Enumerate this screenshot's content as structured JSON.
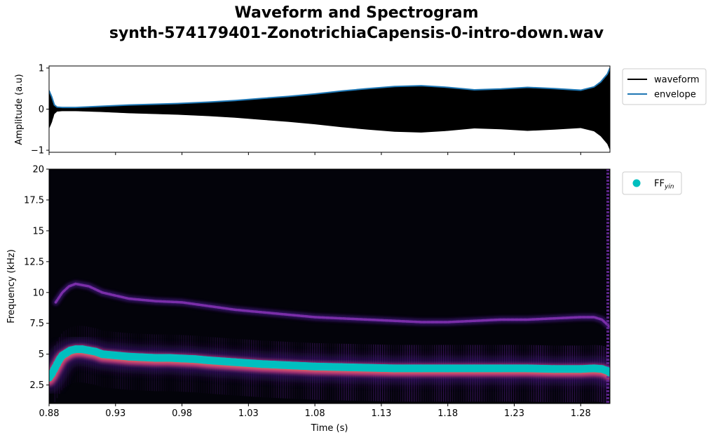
{
  "figure": {
    "title_line1": "Waveform and Spectrogram",
    "title_line2": "synth-574179401-ZonotrichiaCapensis-0-intro-down.wav"
  },
  "chart_data": [
    {
      "type": "line",
      "panel": "waveform",
      "ylabel": "Amplitude (a.u)",
      "xlim": [
        0.88,
        1.302
      ],
      "ylim": [
        -1.05,
        1.05
      ],
      "yticks": [
        1,
        0,
        -1
      ],
      "ytick_labels": [
        "1",
        "0",
        "−1"
      ],
      "legend_position": "outside-right-top",
      "colors": {
        "waveform": "#000000",
        "envelope": "#1f77b4"
      },
      "series": [
        {
          "name": "waveform",
          "x": [
            0.88,
            0.882,
            0.884,
            0.886,
            0.89,
            0.9,
            0.92,
            0.94,
            0.96,
            0.98,
            1.0,
            1.02,
            1.04,
            1.06,
            1.08,
            1.1,
            1.12,
            1.14,
            1.16,
            1.18,
            1.2,
            1.22,
            1.24,
            1.26,
            1.28,
            1.29,
            1.295,
            1.3,
            1.302
          ],
          "amplitude_max": [
            0.48,
            0.33,
            0.12,
            0.06,
            0.05,
            0.05,
            0.07,
            0.1,
            0.12,
            0.14,
            0.17,
            0.21,
            0.26,
            0.31,
            0.37,
            0.44,
            0.5,
            0.55,
            0.57,
            0.53,
            0.47,
            0.49,
            0.53,
            0.5,
            0.46,
            0.54,
            0.66,
            0.85,
            1.0
          ],
          "amplitude_min": [
            -0.48,
            -0.33,
            -0.12,
            -0.06,
            -0.05,
            -0.05,
            -0.07,
            -0.1,
            -0.12,
            -0.14,
            -0.17,
            -0.21,
            -0.26,
            -0.31,
            -0.37,
            -0.44,
            -0.5,
            -0.55,
            -0.57,
            -0.53,
            -0.47,
            -0.49,
            -0.53,
            -0.5,
            -0.46,
            -0.54,
            -0.66,
            -0.85,
            -1.0
          ]
        },
        {
          "name": "envelope",
          "x": [
            0.88,
            0.882,
            0.884,
            0.886,
            0.89,
            0.9,
            0.92,
            0.94,
            0.96,
            0.98,
            1.0,
            1.02,
            1.04,
            1.06,
            1.08,
            1.1,
            1.12,
            1.14,
            1.16,
            1.18,
            1.2,
            1.22,
            1.24,
            1.26,
            1.28,
            1.29,
            1.295,
            1.3,
            1.302
          ],
          "y": [
            0.45,
            0.3,
            0.1,
            0.05,
            0.04,
            0.04,
            0.07,
            0.1,
            0.12,
            0.14,
            0.17,
            0.21,
            0.26,
            0.31,
            0.37,
            0.44,
            0.5,
            0.55,
            0.57,
            0.53,
            0.47,
            0.49,
            0.53,
            0.5,
            0.46,
            0.54,
            0.66,
            0.85,
            1.0
          ]
        }
      ]
    },
    {
      "type": "heatmap",
      "panel": "spectrogram",
      "xlabel": "Time (s)",
      "ylabel": "Frequency (kHz)",
      "xlim": [
        0.88,
        1.302
      ],
      "ylim": [
        1,
        20
      ],
      "xticks": [
        0.88,
        0.93,
        0.98,
        1.03,
        1.08,
        1.13,
        1.18,
        1.23,
        1.28
      ],
      "xtick_labels": [
        "0.88",
        "0.93",
        "0.98",
        "1.03",
        "1.08",
        "1.13",
        "1.18",
        "1.23",
        "1.28"
      ],
      "yticks": [
        2.5,
        5,
        7.5,
        10,
        12.5,
        15,
        17.5,
        20
      ],
      "ytick_labels": [
        "2.5",
        "5",
        "7.5",
        "10",
        "12.5",
        "15",
        "17.5",
        "20"
      ],
      "legend_position": "outside-right-top",
      "colors": {
        "background": "#03030a",
        "harmonic": "#7a2ea8",
        "fundamental_band": "#c13a7a",
        "FF_yin": "#00bfbf"
      },
      "harmonic_track": {
        "x": [
          0.885,
          0.89,
          0.895,
          0.9,
          0.91,
          0.92,
          0.94,
          0.96,
          0.98,
          1.0,
          1.02,
          1.04,
          1.06,
          1.08,
          1.1,
          1.12,
          1.14,
          1.16,
          1.18,
          1.2,
          1.22,
          1.24,
          1.26,
          1.28,
          1.29,
          1.296,
          1.302
        ],
        "y": [
          9.2,
          10.0,
          10.5,
          10.7,
          10.5,
          10.0,
          9.5,
          9.3,
          9.2,
          8.9,
          8.6,
          8.4,
          8.2,
          8.0,
          7.9,
          7.8,
          7.7,
          7.6,
          7.6,
          7.7,
          7.8,
          7.8,
          7.9,
          8.0,
          8.0,
          7.8,
          7.2
        ]
      },
      "series": [
        {
          "name": "FF",
          "name_subscript": "yin",
          "x": [
            0.88,
            0.882,
            0.884,
            0.886,
            0.888,
            0.89,
            0.893,
            0.896,
            0.9,
            0.905,
            0.91,
            0.915,
            0.92,
            0.93,
            0.94,
            0.95,
            0.96,
            0.97,
            0.98,
            0.99,
            1.0,
            1.02,
            1.04,
            1.06,
            1.08,
            1.1,
            1.12,
            1.14,
            1.16,
            1.18,
            1.2,
            1.22,
            1.24,
            1.26,
            1.28,
            1.29,
            1.296,
            1.3,
            1.302
          ],
          "y": [
            3.1,
            3.4,
            3.8,
            4.2,
            4.6,
            4.9,
            5.1,
            5.3,
            5.4,
            5.4,
            5.3,
            5.2,
            5.0,
            4.9,
            4.8,
            4.75,
            4.7,
            4.7,
            4.65,
            4.6,
            4.5,
            4.35,
            4.2,
            4.1,
            4.0,
            3.95,
            3.9,
            3.85,
            3.85,
            3.85,
            3.85,
            3.85,
            3.85,
            3.8,
            3.8,
            3.85,
            3.8,
            3.65,
            3.5
          ]
        }
      ]
    }
  ]
}
